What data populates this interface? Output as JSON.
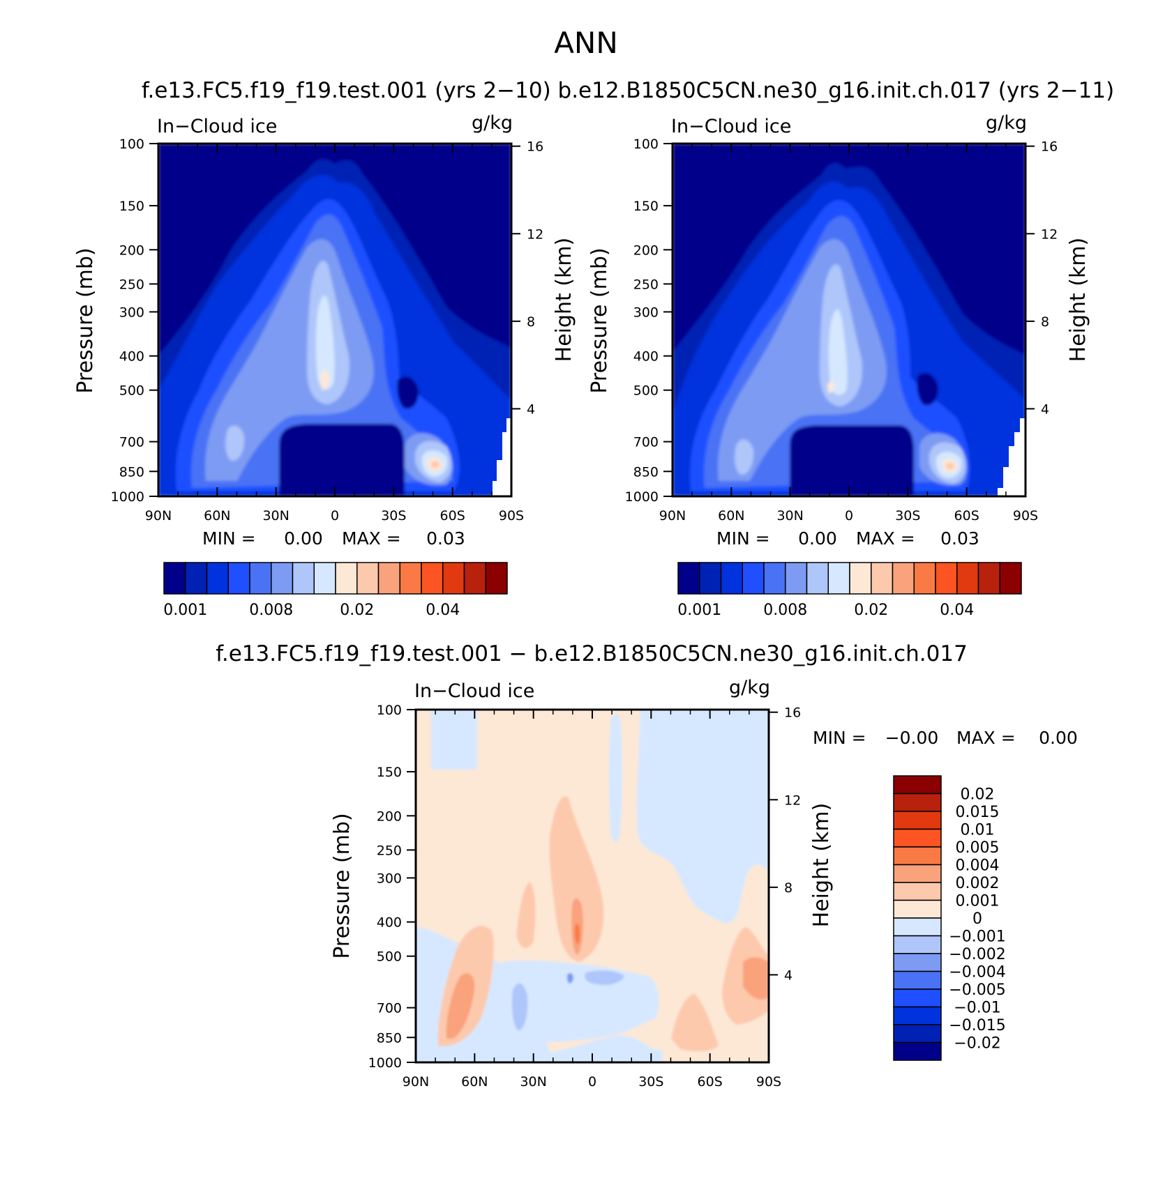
{
  "figure": {
    "title": "ANN",
    "case_subtitle": "f.e13.FC5.f19_f19.test.001 (yrs 2−10) b.e12.B1850C5CN.ne30_g16.init.ch.017 (yrs 2−11)",
    "diff_subtitle": "f.e13.FC5.f19_f19.test.001 − b.e12.B1850C5CN.ne30_g16.init.ch.017"
  },
  "colors": {
    "absolute_levels": [
      "#00008b",
      "#0022b4",
      "#0033dd",
      "#1f4fff",
      "#4a72f5",
      "#7d9bf3",
      "#afc6fb",
      "#d6e8ff",
      "#fde8d6",
      "#fdc9ad",
      "#f9a27c",
      "#fa7a45",
      "#fc5422",
      "#e23a10",
      "#b8210c",
      "#8b0000"
    ],
    "diff_levels": [
      "#00008b",
      "#0022b4",
      "#0033dd",
      "#1f4fff",
      "#4a72f5",
      "#7d9bf3",
      "#afc6fb",
      "#d6e8ff",
      "#fde8d6",
      "#fdc9ad",
      "#f9a27c",
      "#fa7a45",
      "#fc5422",
      "#e23a10",
      "#b8210c",
      "#8b0000"
    ]
  },
  "chart_data": [
    {
      "id": "model",
      "type": "contour",
      "title_left": "In−Cloud ice",
      "title_right": "g/kg",
      "ylabel": "Pressure (mb)",
      "ylabel_right": "Height (km)",
      "x_ticks": [
        "90N",
        "60N",
        "30N",
        "0",
        "30S",
        "60S",
        "90S"
      ],
      "y_ticks": [
        "100",
        "150",
        "200",
        "250",
        "300",
        "400",
        "500",
        "700",
        "850",
        "1000"
      ],
      "y_ticks_right": [
        "16",
        "12",
        "8",
        "4"
      ],
      "stats": {
        "min_label": "MIN =",
        "min": "0.00",
        "max_label": "MAX =",
        "max": "0.03"
      },
      "colorbar_labels": [
        "0.001",
        "0.008",
        "0.02",
        "0.04"
      ],
      "approx_values": {
        "deep_convective_core_peak": 0.024,
        "southern_midlatitude_lowlevel_peak": 0.03,
        "background": 0.001
      }
    },
    {
      "id": "control",
      "type": "contour",
      "title_left": "In−Cloud ice",
      "title_right": "g/kg",
      "ylabel": "Pressure (mb)",
      "ylabel_right": "Height (km)",
      "x_ticks": [
        "90N",
        "60N",
        "30N",
        "0",
        "30S",
        "60S",
        "90S"
      ],
      "y_ticks": [
        "100",
        "150",
        "200",
        "250",
        "300",
        "400",
        "500",
        "700",
        "850",
        "1000"
      ],
      "y_ticks_right": [
        "16",
        "12",
        "8",
        "4"
      ],
      "stats": {
        "min_label": "MIN =",
        "min": "0.00",
        "max_label": "MAX =",
        "max": "0.03"
      },
      "colorbar_labels": [
        "0.001",
        "0.008",
        "0.02",
        "0.04"
      ],
      "approx_values": {
        "deep_convective_core_peak": 0.02,
        "southern_midlatitude_lowlevel_peak": 0.026,
        "background": 0.001
      }
    },
    {
      "id": "difference",
      "type": "contour",
      "title_left": "In−Cloud ice",
      "title_right": "g/kg",
      "ylabel": "Pressure (mb)",
      "ylabel_right": "Height (km)",
      "x_ticks": [
        "90N",
        "60N",
        "30N",
        "0",
        "30S",
        "60S",
        "90S"
      ],
      "y_ticks": [
        "100",
        "150",
        "200",
        "250",
        "300",
        "400",
        "500",
        "700",
        "850",
        "1000"
      ],
      "y_ticks_right": [
        "16",
        "12",
        "8",
        "4"
      ],
      "stats": {
        "min_label": "MIN =",
        "min": "−0.00",
        "max_label": "MAX =",
        "max": "0.00"
      },
      "colorbar_labels": [
        "0.02",
        "0.015",
        "0.01",
        "0.005",
        "0.004",
        "0.002",
        "0.001",
        "0",
        "−0.001",
        "−0.002",
        "−0.004",
        "−0.005",
        "−0.01",
        "−0.015",
        "−0.02"
      ],
      "approx_values": {
        "max_positive": 0.004,
        "max_negative": -0.002
      }
    }
  ]
}
